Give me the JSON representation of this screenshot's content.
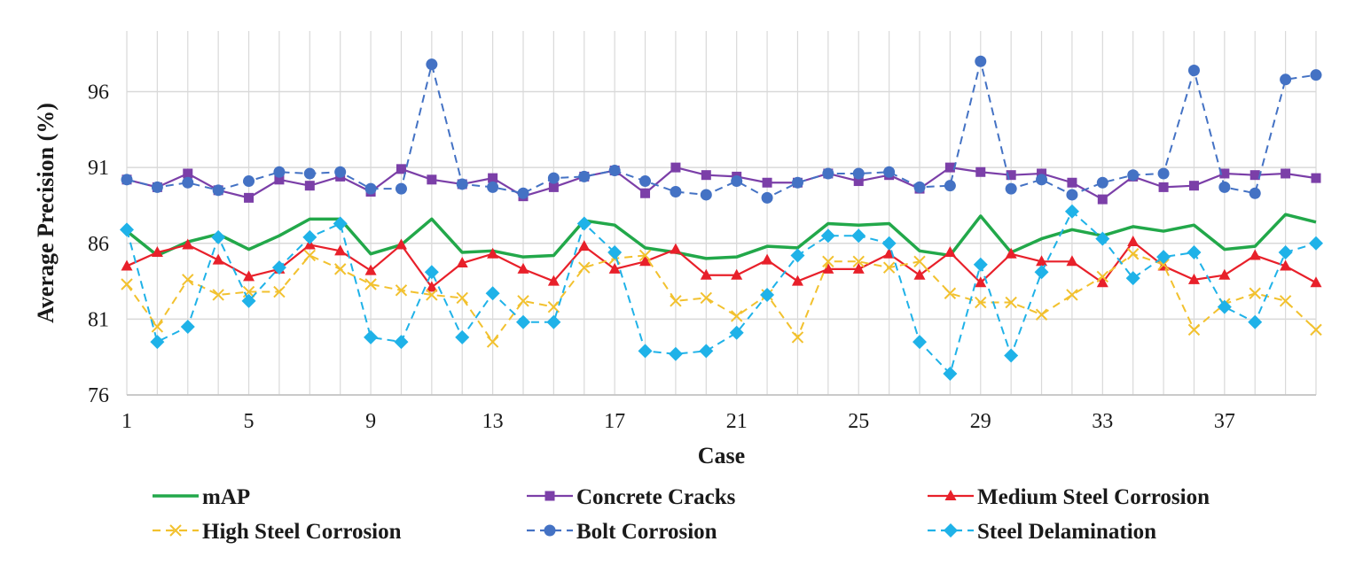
{
  "chart_data": {
    "type": "line",
    "title": "",
    "xlabel": "Case",
    "ylabel": "Average Precision (%)",
    "xlim": [
      1,
      40
    ],
    "ylim": [
      76,
      100
    ],
    "x_ticks": [
      1,
      5,
      9,
      13,
      17,
      21,
      25,
      29,
      33,
      37
    ],
    "y_ticks": [
      76,
      81,
      86,
      91,
      96
    ],
    "grid": true,
    "legend_position": "bottom",
    "x": [
      1,
      2,
      3,
      4,
      5,
      6,
      7,
      8,
      9,
      10,
      11,
      12,
      13,
      14,
      15,
      16,
      17,
      18,
      19,
      20,
      21,
      22,
      23,
      24,
      25,
      26,
      27,
      28,
      29,
      30,
      31,
      32,
      33,
      34,
      35,
      36,
      37,
      38,
      39,
      40
    ],
    "series": [
      {
        "name": "mAP",
        "color": "#22a84a",
        "dashed": false,
        "marker": "none",
        "values": [
          86.8,
          85.2,
          86.1,
          86.6,
          85.6,
          86.5,
          87.6,
          87.6,
          85.3,
          85.9,
          87.6,
          85.4,
          85.5,
          85.1,
          85.2,
          87.5,
          87.2,
          85.7,
          85.4,
          85.0,
          85.1,
          85.8,
          85.7,
          87.3,
          87.2,
          87.3,
          85.5,
          85.2,
          87.8,
          85.4,
          86.3,
          86.9,
          86.5,
          87.1,
          86.8,
          87.2,
          85.6,
          85.8,
          87.9,
          87.4
        ]
      },
      {
        "name": "Concrete Cracks",
        "color": "#7b3fa8",
        "dashed": false,
        "marker": "square",
        "values": [
          90.2,
          89.7,
          90.6,
          89.5,
          89.0,
          90.2,
          89.8,
          90.4,
          89.4,
          90.9,
          90.2,
          89.9,
          90.3,
          89.1,
          89.7,
          90.4,
          90.8,
          89.3,
          91.0,
          90.5,
          90.4,
          90.0,
          90.0,
          90.6,
          90.1,
          90.5,
          89.6,
          91.0,
          90.7,
          90.5,
          90.6,
          90.0,
          88.9,
          90.4,
          89.7,
          89.8,
          90.6,
          90.5,
          90.6,
          90.3
        ]
      },
      {
        "name": "Medium Steel Corrosion",
        "color": "#e8202a",
        "dashed": false,
        "marker": "triangle",
        "values": [
          84.5,
          85.4,
          85.9,
          84.9,
          83.8,
          84.3,
          85.9,
          85.5,
          84.2,
          85.9,
          83.1,
          84.7,
          85.3,
          84.3,
          83.5,
          85.8,
          84.3,
          84.8,
          85.6,
          83.9,
          83.9,
          84.9,
          83.5,
          84.3,
          84.3,
          85.3,
          83.9,
          85.4,
          83.4,
          85.3,
          84.8,
          84.8,
          83.4,
          86.1,
          84.5,
          83.6,
          83.9,
          85.2,
          84.5,
          83.4
        ]
      },
      {
        "name": "High Steel Corrosion",
        "color": "#f2c12e",
        "dashed": true,
        "marker": "x",
        "values": [
          83.3,
          80.5,
          83.6,
          82.6,
          82.8,
          82.8,
          85.2,
          84.3,
          83.3,
          82.9,
          82.6,
          82.4,
          79.5,
          82.2,
          81.8,
          84.4,
          85.0,
          85.2,
          82.2,
          82.4,
          81.2,
          82.6,
          79.8,
          84.8,
          84.8,
          84.4,
          84.8,
          82.7,
          82.1,
          82.1,
          81.3,
          82.6,
          83.8,
          85.3,
          84.6,
          80.3,
          82.0,
          82.7,
          82.2,
          80.3
        ]
      },
      {
        "name": "Bolt Corrosion",
        "color": "#4472c4",
        "dashed": true,
        "marker": "circle",
        "values": [
          90.2,
          89.7,
          90.0,
          89.5,
          90.1,
          90.7,
          90.6,
          90.7,
          89.6,
          89.6,
          97.8,
          89.9,
          89.7,
          89.3,
          90.3,
          90.4,
          90.8,
          90.1,
          89.4,
          89.2,
          90.1,
          89.0,
          90.0,
          90.6,
          90.6,
          90.7,
          89.7,
          89.8,
          98.0,
          89.6,
          90.2,
          89.2,
          90.0,
          90.5,
          90.6,
          97.4,
          89.7,
          89.3,
          96.8,
          97.1
        ]
      },
      {
        "name": "Steel Delamination",
        "color": "#1fb2e8",
        "dashed": true,
        "marker": "diamond",
        "values": [
          86.9,
          79.5,
          80.5,
          86.4,
          82.2,
          84.4,
          86.4,
          87.3,
          79.8,
          79.5,
          84.1,
          79.8,
          82.7,
          80.8,
          80.8,
          87.3,
          85.4,
          78.9,
          78.7,
          78.9,
          80.1,
          82.6,
          85.2,
          86.5,
          86.5,
          86.0,
          79.5,
          77.4,
          84.6,
          78.6,
          84.1,
          88.1,
          86.3,
          83.7,
          85.1,
          85.4,
          81.8,
          80.8,
          85.4,
          86.0
        ]
      }
    ]
  }
}
